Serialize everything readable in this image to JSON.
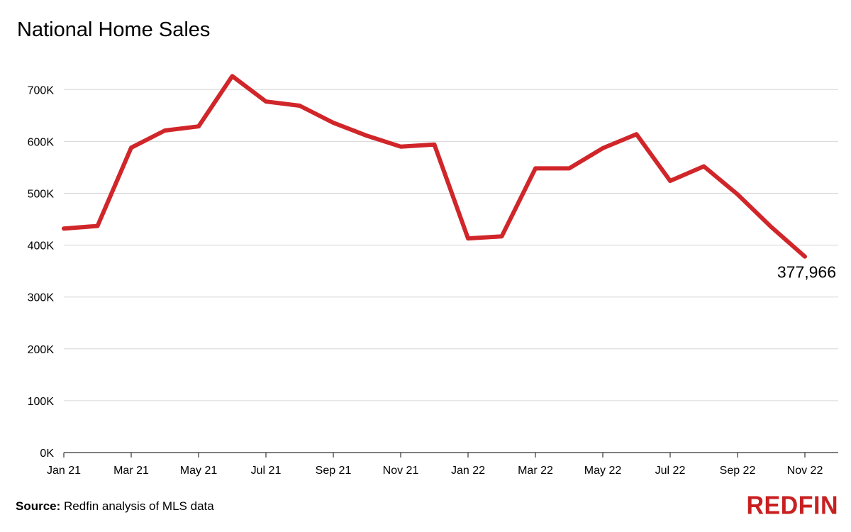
{
  "chart_data": {
    "type": "line",
    "title": "National Home Sales",
    "xlabel": "",
    "ylabel": "",
    "x": [
      "Jan 21",
      "Feb 21",
      "Mar 21",
      "Apr 21",
      "May 21",
      "Jun 21",
      "Jul 21",
      "Aug 21",
      "Sep 21",
      "Oct 21",
      "Nov 21",
      "Dec 21",
      "Jan 22",
      "Feb 22",
      "Mar 22",
      "Apr 22",
      "May 22",
      "Jun 22",
      "Jul 22",
      "Aug 22",
      "Sep 22",
      "Oct 22",
      "Nov 22"
    ],
    "xticks": [
      "Jan 21",
      "Mar 21",
      "May 21",
      "Jul 21",
      "Sep 21",
      "Nov 21",
      "Jan 22",
      "Mar 22",
      "May 22",
      "Jul 22",
      "Sep 22",
      "Nov 22"
    ],
    "series": [
      {
        "values": [
          432000,
          437000,
          588000,
          621000,
          629000,
          726000,
          677000,
          669000,
          636000,
          611000,
          590000,
          594000,
          413000,
          417000,
          548000,
          548000,
          587000,
          614000,
          524000,
          552000,
          498000,
          435000,
          377966
        ]
      }
    ],
    "ylim": [
      0,
      700000
    ],
    "yticks": [
      "0K",
      "100K",
      "200K",
      "300K",
      "400K",
      "500K",
      "600K",
      "700K"
    ],
    "grid": true,
    "line_color": "#d0262a",
    "end_label": "377,966"
  },
  "footer": {
    "source_label": "Source:",
    "source_text": "Redfin analysis of MLS data",
    "brand": "REDFIN",
    "brand_color": "#c82021"
  }
}
